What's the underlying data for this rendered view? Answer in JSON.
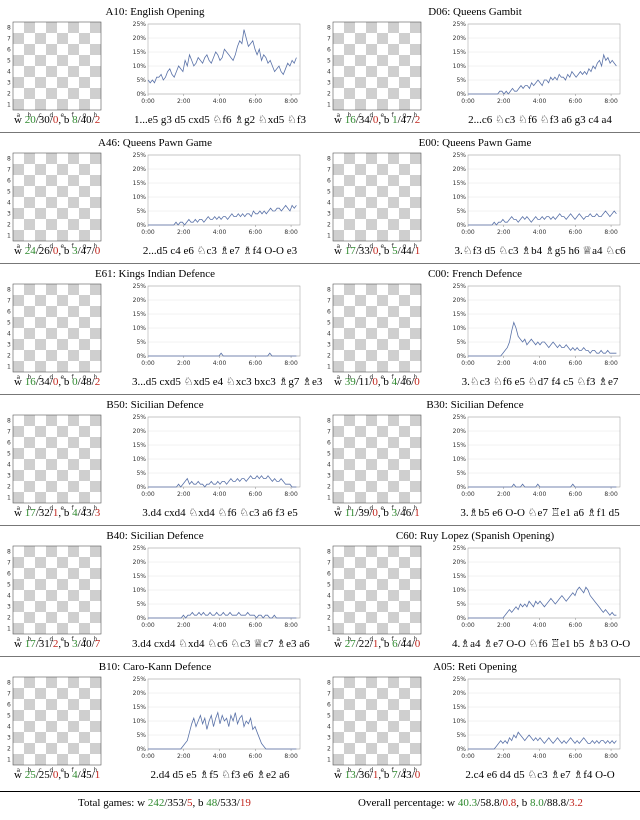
{
  "openings": [
    {
      "code": "A10",
      "name": "English Opening",
      "counts": {
        "w": [
          "20",
          "30",
          "0"
        ],
        "b": [
          "8",
          "40",
          "2"
        ]
      },
      "moves": "1...e5 g3 d5 cxd5 ♘f6 ♗g2 ♘xd5 ♘f3",
      "series": [
        5,
        4,
        5,
        4,
        6,
        6,
        7,
        5,
        6,
        8,
        9,
        7,
        6,
        8,
        10,
        9,
        8,
        12,
        10,
        14,
        12,
        10,
        11,
        13,
        12,
        11,
        13,
        14,
        12,
        11,
        13,
        15,
        14,
        12,
        13,
        16,
        15,
        14,
        13,
        12,
        14,
        17,
        19,
        18,
        23,
        20,
        17,
        18,
        19,
        16,
        14,
        16,
        12,
        14,
        13,
        11,
        12,
        10,
        8,
        9,
        10,
        8,
        7,
        9,
        11,
        10,
        12,
        11,
        13
      ]
    },
    {
      "code": "D06",
      "name": "Queens Gambit",
      "counts": {
        "w": [
          "16",
          "34",
          "0"
        ],
        "b": [
          "1",
          "47",
          "2"
        ]
      },
      "moves": "2...c6 ♘c3 ♘f6 ♘f3 a6 g3 c4 a4",
      "series": [
        0,
        0,
        0,
        0,
        0,
        0,
        0,
        0,
        0,
        0,
        0,
        0,
        0,
        0,
        0,
        1,
        1,
        0,
        1,
        0,
        1,
        2,
        1,
        1,
        2,
        3,
        2,
        3,
        3,
        2,
        4,
        3,
        4,
        5,
        4,
        3,
        5,
        5,
        4,
        6,
        5,
        6,
        5,
        7,
        6,
        6,
        5,
        7,
        6,
        8,
        7,
        6,
        7,
        8,
        7,
        8,
        7,
        9,
        8,
        10,
        9,
        11,
        12,
        10,
        14,
        12,
        13,
        11,
        12,
        11,
        10
      ]
    },
    {
      "code": "A46",
      "name": "Queens Pawn Game",
      "counts": {
        "w": [
          "24",
          "26",
          "0"
        ],
        "b": [
          "3",
          "47",
          "0"
        ]
      },
      "moves": "2...d5 c4 e6 ♘c3 ♗e7 ♗f4 O-O e3",
      "series": [
        0,
        0,
        0,
        0,
        0,
        0,
        0,
        0,
        0,
        0,
        0,
        0,
        0,
        1,
        0,
        1,
        1,
        0,
        1,
        2,
        1,
        1,
        2,
        1,
        2,
        2,
        1,
        2,
        3,
        2,
        2,
        3,
        2,
        3,
        2,
        3,
        3,
        2,
        3,
        4,
        3,
        3,
        4,
        3,
        4,
        3,
        4,
        4,
        3,
        5,
        4,
        4,
        5,
        4,
        5,
        4,
        5,
        6,
        5,
        5,
        6,
        6,
        5,
        6,
        7,
        6,
        5,
        7,
        6,
        7
      ]
    },
    {
      "code": "E00",
      "name": "Queens Pawn Game",
      "counts": {
        "w": [
          "17",
          "33",
          "0"
        ],
        "b": [
          "5",
          "44",
          "1"
        ]
      },
      "moves": "3.♘f3 d5 ♘c3 ♗b4 ♗g5 h6 ♕a4 ♘c6",
      "series": [
        0,
        0,
        0,
        0,
        0,
        0,
        0,
        0,
        0,
        0,
        0,
        0,
        1,
        0,
        1,
        1,
        2,
        1,
        1,
        2,
        3,
        2,
        2,
        1,
        2,
        3,
        2,
        3,
        2,
        1,
        2,
        3,
        2,
        2,
        3,
        2,
        3,
        3,
        2,
        3,
        2,
        3,
        4,
        3,
        3,
        2,
        3,
        4,
        3,
        2,
        3,
        4,
        3,
        2,
        3,
        3,
        4,
        3,
        3,
        4,
        3,
        3,
        4,
        5,
        4,
        3,
        4,
        5,
        4
      ]
    },
    {
      "code": "E61",
      "name": "Kings Indian Defence",
      "counts": {
        "w": [
          "16",
          "34",
          "0"
        ],
        "b": [
          "0",
          "48",
          "2"
        ]
      },
      "moves": "3...d5 cxd5 ♘xd5 e4 ♘xc3 bxc3 ♗g7 ♗e3",
      "series": [
        0,
        0,
        0,
        0,
        0,
        0,
        0,
        0,
        0,
        0,
        0,
        0,
        0,
        0,
        0,
        0,
        0,
        0,
        0,
        0,
        0,
        0,
        0,
        0,
        0,
        0,
        0,
        0,
        0,
        0,
        0,
        0,
        0,
        1,
        0,
        0,
        0,
        0,
        0,
        0,
        0,
        0,
        0,
        0,
        0,
        0,
        0,
        0,
        0,
        0,
        0,
        0,
        0,
        0,
        0,
        1,
        0,
        0,
        0,
        0,
        0,
        0,
        0,
        0,
        0,
        0,
        0,
        0
      ]
    },
    {
      "code": "C00",
      "name": "French Defence",
      "counts": {
        "w": [
          "39",
          "11",
          "0"
        ],
        "b": [
          "4",
          "46",
          "0"
        ]
      },
      "moves": "3.♘c3 ♘f6 e5 ♘d7 f4 c5 ♘f3 ♗e7",
      "series": [
        0,
        0,
        0,
        0,
        0,
        0,
        0,
        0,
        0,
        0,
        0,
        0,
        0,
        0,
        0,
        0,
        1,
        2,
        3,
        5,
        9,
        12,
        10,
        7,
        6,
        5,
        6,
        4,
        5,
        6,
        5,
        4,
        5,
        4,
        5,
        5,
        4,
        3,
        4,
        5,
        4,
        3,
        4,
        3,
        3,
        4,
        3,
        2,
        3,
        2,
        3,
        2,
        2,
        3,
        2,
        2,
        1,
        2,
        2,
        1,
        1,
        2,
        1,
        1,
        2,
        1,
        1,
        1,
        1
      ]
    },
    {
      "code": "B50",
      "name": "Sicilian Defence",
      "counts": {
        "w": [
          "17",
          "32",
          "1"
        ],
        "b": [
          "4",
          "43",
          "3"
        ]
      },
      "moves": "3.d4 cxd4 ♘xd4 ♘f6 ♘c3 a6 f3 e5",
      "series": [
        0,
        0,
        0,
        0,
        0,
        0,
        0,
        0,
        0,
        0,
        0,
        0,
        0,
        0,
        1,
        0,
        1,
        2,
        3,
        1,
        2,
        1,
        1,
        2,
        1,
        1,
        0,
        1,
        1,
        2,
        1,
        1,
        2,
        1,
        2,
        2,
        1,
        2,
        3,
        2,
        2,
        3,
        2,
        3,
        3,
        2,
        3,
        4,
        3,
        3,
        4,
        3,
        4,
        3,
        3,
        4,
        3,
        2,
        3,
        2,
        2,
        3,
        2,
        1,
        1,
        1,
        0,
        0,
        0
      ]
    },
    {
      "code": "B30",
      "name": "Sicilian Defence",
      "counts": {
        "w": [
          "11",
          "39",
          "0"
        ],
        "b": [
          "3",
          "46",
          "1"
        ]
      },
      "moves": "3.♗b5 e6 O-O ♘e7 ♖e1 a6 ♗f1 d5",
      "series": [
        0,
        0,
        0,
        0,
        0,
        0,
        0,
        0,
        0,
        0,
        0,
        0,
        0,
        0,
        0,
        0,
        0,
        0,
        0,
        0,
        0,
        1,
        0,
        0,
        0,
        1,
        0,
        0,
        0,
        0,
        0,
        0,
        1,
        0,
        0,
        0,
        0,
        0,
        0,
        0,
        0,
        0,
        0,
        0,
        0,
        0,
        0,
        0,
        1,
        0,
        0,
        0,
        0,
        0,
        0,
        0,
        0,
        0,
        0,
        0,
        0,
        0,
        0,
        0,
        0,
        0,
        0,
        0,
        0
      ]
    },
    {
      "code": "B40",
      "name": "Sicilian Defence",
      "counts": {
        "w": [
          "17",
          "31",
          "2"
        ],
        "b": [
          "3",
          "40",
          "7"
        ]
      },
      "moves": "3.d4 cxd4 ♘xd4 ♘c6 ♘c3 ♕c7 ♗e3 a6",
      "series": [
        0,
        0,
        0,
        0,
        0,
        0,
        0,
        0,
        0,
        0,
        0,
        0,
        0,
        0,
        0,
        0,
        1,
        0,
        1,
        1,
        2,
        1,
        1,
        2,
        1,
        2,
        1,
        1,
        2,
        1,
        1,
        2,
        1,
        1,
        2,
        1,
        1,
        2,
        1,
        1,
        1,
        2,
        1,
        1,
        1,
        2,
        1,
        1,
        1,
        0,
        1,
        1,
        0,
        1,
        1,
        0,
        0,
        1,
        0,
        0,
        0,
        0,
        0,
        0,
        0,
        0,
        0,
        0
      ]
    },
    {
      "code": "C60",
      "name": "Ruy Lopez (Spanish Opening)",
      "counts": {
        "w": [
          "27",
          "22",
          "1"
        ],
        "b": [
          "6",
          "44",
          "0"
        ]
      },
      "moves": "4.♗a4 ♗e7 O-O ♘f6 ♖e1 b5 ♗b3 O-O",
      "series": [
        0,
        0,
        0,
        0,
        0,
        0,
        0,
        0,
        0,
        0,
        0,
        0,
        0,
        0,
        0,
        0,
        0,
        1,
        2,
        3,
        2,
        3,
        4,
        3,
        5,
        4,
        5,
        4,
        6,
        5,
        4,
        6,
        5,
        6,
        5,
        4,
        5,
        6,
        7,
        6,
        5,
        6,
        7,
        8,
        7,
        6,
        7,
        8,
        9,
        8,
        10,
        11,
        10,
        9,
        11,
        10,
        8,
        7,
        6,
        5,
        4,
        3,
        2,
        3,
        2,
        1,
        2,
        1,
        1
      ]
    },
    {
      "code": "B10",
      "name": "Caro-Kann Defence",
      "counts": {
        "w": [
          "25",
          "25",
          "0"
        ],
        "b": [
          "4",
          "45",
          "1"
        ]
      },
      "moves": "2.d4 d5 e5 ♗f5 ♘f3 e6 ♗e2 a6",
      "series": [
        0,
        0,
        0,
        0,
        0,
        0,
        0,
        0,
        0,
        0,
        0,
        0,
        0,
        0,
        0,
        0,
        1,
        2,
        3,
        6,
        9,
        11,
        8,
        10,
        12,
        9,
        11,
        7,
        10,
        12,
        8,
        11,
        13,
        9,
        12,
        10,
        11,
        8,
        12,
        10,
        13,
        9,
        11,
        12,
        8,
        10,
        9,
        11,
        7,
        8,
        6,
        4,
        2,
        1,
        0,
        0,
        0,
        0,
        0,
        0,
        0,
        0,
        0,
        0,
        0,
        0,
        0,
        0,
        0
      ]
    },
    {
      "code": "A05",
      "name": "Reti Opening",
      "counts": {
        "w": [
          "13",
          "36",
          "1"
        ],
        "b": [
          "7",
          "43",
          "0"
        ]
      },
      "moves": "2.c4 e6 d4 d5 ♘c3 ♗e7 ♗f4 O-O",
      "series": [
        0,
        0,
        0,
        0,
        0,
        0,
        0,
        0,
        0,
        0,
        0,
        0,
        0,
        1,
        2,
        3,
        2,
        3,
        2,
        4,
        3,
        5,
        4,
        6,
        5,
        4,
        3,
        4,
        5,
        4,
        3,
        4,
        3,
        4,
        3,
        2,
        3,
        4,
        3,
        2,
        3,
        4,
        3,
        2,
        3,
        2,
        3,
        4,
        3,
        2,
        3,
        2,
        3,
        4,
        3,
        2,
        2,
        3,
        2,
        3,
        2,
        3,
        3,
        2,
        3,
        2,
        3,
        2,
        3
      ]
    }
  ],
  "chart_axes": {
    "yticks": [
      "0%",
      "5%",
      "10%",
      "15%",
      "20%",
      "25%"
    ],
    "xticks": [
      "0:00",
      "2:00",
      "4:00",
      "6:00",
      "8:00"
    ],
    "ylim": [
      0,
      25
    ],
    "xlim": [
      0,
      8.5
    ]
  },
  "board_axes": {
    "files": [
      "a",
      "b",
      "c",
      "d",
      "e",
      "f",
      "g",
      "h"
    ],
    "ranks": [
      "8",
      "7",
      "6",
      "5",
      "4",
      "3",
      "2",
      "1"
    ]
  },
  "totals": {
    "label": "Total games:",
    "w": [
      "242",
      "353",
      "5"
    ],
    "b": [
      "48",
      "533",
      "19"
    ]
  },
  "overall": {
    "label": "Overall percentage:",
    "w": [
      "40.3",
      "58.8",
      "0.8"
    ],
    "b": [
      "8.0",
      "88.8",
      "3.2"
    ]
  },
  "colors": {
    "series": "#5a72a8",
    "good": "#2f8a2f",
    "bad": "#c0241c"
  }
}
